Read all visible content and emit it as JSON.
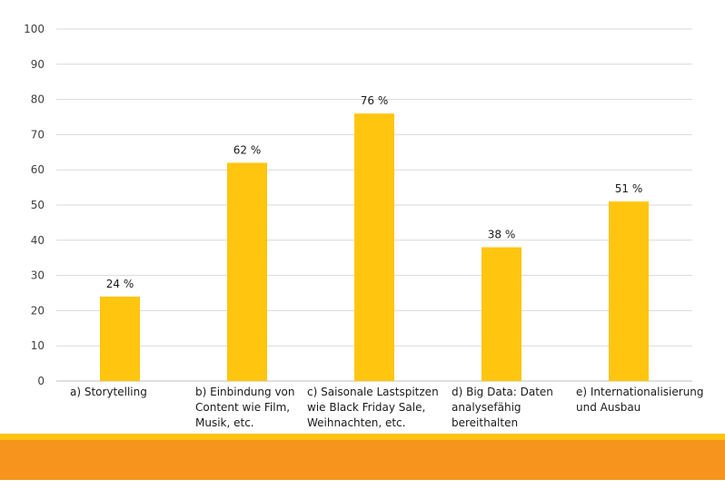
{
  "chart_data": {
    "type": "bar",
    "categories": [
      "a) Storytelling",
      "b) Einbindung von\nContent wie Film,\nMusik, etc.",
      "c) Saisonale Lastspitzen\nwie Black Friday Sale,\nWeihnachten, etc.",
      "d) Big Data: Daten\nanalysefähig\nbereithalten",
      "e) Internationalisierung\nund Ausbau"
    ],
    "values": [
      24,
      62,
      76,
      38,
      51
    ],
    "data_labels": [
      "24  %",
      "62  %",
      "76  %",
      "38  %",
      "51  %"
    ],
    "ylim": [
      0,
      100
    ],
    "yticks": [
      "0",
      "10",
      "20",
      "30",
      "40",
      "50",
      "60",
      "70",
      "80",
      "90",
      "100"
    ],
    "grid": true,
    "legend": "none",
    "bar_color": "#ffc50f",
    "grid_color": "#d9d9d9",
    "axis_color": "#bfbfbf",
    "text_color": "#404040"
  },
  "footer": {
    "stripe_color": "#ffc20e",
    "band_color": "#f7941d"
  }
}
